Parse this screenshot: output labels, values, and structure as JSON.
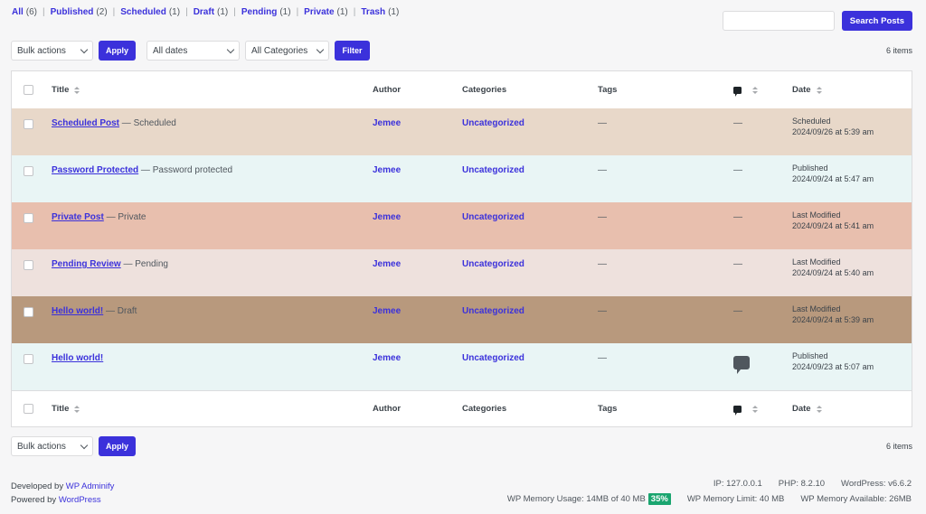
{
  "status_filters": [
    {
      "label": "All",
      "count": "(6)"
    },
    {
      "label": "Published",
      "count": "(2)"
    },
    {
      "label": "Scheduled",
      "count": "(1)"
    },
    {
      "label": "Draft",
      "count": "(1)"
    },
    {
      "label": "Pending",
      "count": "(1)"
    },
    {
      "label": "Private",
      "count": "(1)"
    },
    {
      "label": "Trash",
      "count": "(1)"
    }
  ],
  "status_separator": "|",
  "search": {
    "value": "",
    "button_label": "Search Posts"
  },
  "top_nav": {
    "bulk_actions": "Bulk actions",
    "apply_label": "Apply",
    "dates_filter": "All dates",
    "categories_filter": "All Categories",
    "filter_label": "Filter",
    "items_count": "6 items"
  },
  "bottom_nav": {
    "bulk_actions": "Bulk actions",
    "apply_label": "Apply",
    "items_count": "6 items"
  },
  "columns": {
    "title": "Title",
    "author": "Author",
    "categories": "Categories",
    "tags": "Tags",
    "date": "Date"
  },
  "posts": [
    {
      "title": "Scheduled Post",
      "state": " — Scheduled",
      "author": "Jemee",
      "category": "Uncategorized",
      "tags": "—",
      "comments": "—",
      "date_status": "Scheduled",
      "date": "2024/09/26 at 5:39 am",
      "bg": "#e8d8c9"
    },
    {
      "title": "Password Protected",
      "state": " — Password protected",
      "author": "Jemee",
      "category": "Uncategorized",
      "tags": "—",
      "comments": "—",
      "date_status": "Published",
      "date": "2024/09/24 at 5:47 am",
      "bg": "#e9f5f5"
    },
    {
      "title": "Private Post",
      "state": " — Private",
      "author": "Jemee",
      "category": "Uncategorized",
      "tags": "—",
      "comments": "—",
      "date_status": "Last Modified",
      "date": "2024/09/24 at 5:41 am",
      "bg": "#e8bfae"
    },
    {
      "title": "Pending Review",
      "state": " — Pending",
      "author": "Jemee",
      "category": "Uncategorized",
      "tags": "—",
      "comments": "—",
      "date_status": "Last Modified",
      "date": "2024/09/24 at 5:40 am",
      "bg": "#eee1dd"
    },
    {
      "title": "Hello world!",
      "state": " — Draft",
      "author": "Jemee",
      "category": "Uncategorized",
      "tags": "—",
      "comments": "—",
      "date_status": "Last Modified",
      "date": "2024/09/24 at 5:39 am",
      "bg": "#b8997d"
    },
    {
      "title": "Hello world!",
      "state": "",
      "author": "Jemee",
      "category": "Uncategorized",
      "tags": "—",
      "comments": "",
      "has_comment_icon": true,
      "date_status": "Published",
      "date": "2024/09/23 at 5:07 am",
      "bg": "#e9f5f5"
    }
  ],
  "footer": {
    "developed_by": "Developed by ",
    "developed_link": "WP Adminify",
    "powered_by": "Powered by ",
    "powered_link": "WordPress",
    "ip": "IP: 127.0.0.1",
    "php": "PHP: 8.2.10",
    "wordpress": "WordPress: v6.6.2",
    "memory_usage": "WP Memory Usage: 14MB of 40 MB",
    "memory_pct": "35%",
    "memory_limit": "WP Memory Limit: 40 MB",
    "memory_available": "WP Memory Available: 26MB"
  },
  "colors": {
    "accent": "#3b31db",
    "memory_badge": "#1aa56f"
  }
}
